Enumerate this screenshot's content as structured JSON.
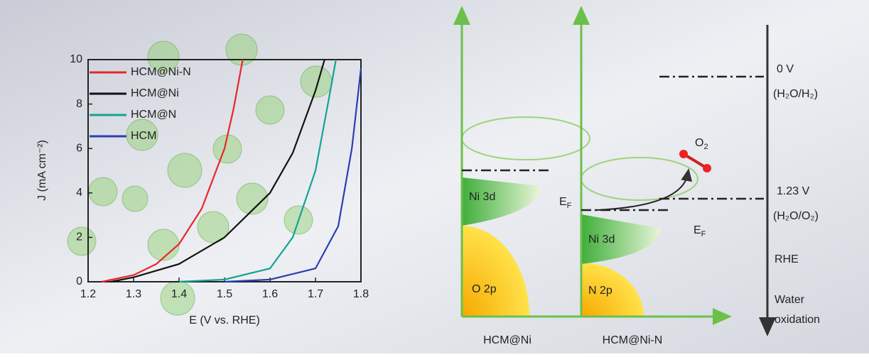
{
  "chart_data": {
    "type": "line",
    "xlabel": "E (V vs. RHE)",
    "ylabel": "J (mA cm⁻²)",
    "xlim": [
      1.2,
      1.8
    ],
    "xticks": [
      1.2,
      1.3,
      1.4,
      1.5,
      1.6,
      1.7,
      1.8
    ],
    "ylim": [
      0,
      10
    ],
    "yticks": [
      0,
      2,
      4,
      6,
      8,
      10
    ],
    "legend": "upper left",
    "series": [
      {
        "name": "HCM@Ni-N",
        "color": "#e8262a",
        "x": [
          1.23,
          1.3,
          1.35,
          1.4,
          1.45,
          1.5,
          1.52,
          1.54
        ],
        "values": [
          0,
          0.3,
          0.8,
          1.7,
          3.3,
          6,
          7.8,
          10
        ]
      },
      {
        "name": "HCM@Ni",
        "color": "#111111",
        "x": [
          1.25,
          1.3,
          1.4,
          1.5,
          1.6,
          1.65,
          1.7,
          1.72
        ],
        "values": [
          0,
          0.2,
          0.8,
          2,
          4,
          5.8,
          8.6,
          10
        ]
      },
      {
        "name": "HCM@N",
        "color": "#14a394",
        "x": [
          1.4,
          1.5,
          1.6,
          1.65,
          1.7,
          1.73,
          1.745
        ],
        "values": [
          0,
          0.1,
          0.6,
          2,
          5,
          8.3,
          10
        ]
      },
      {
        "name": "HCM",
        "color": "#2a3fb0",
        "x": [
          1.5,
          1.6,
          1.7,
          1.75,
          1.78,
          1.8
        ],
        "values": [
          0,
          0.1,
          0.6,
          2.5,
          6,
          9.6
        ]
      }
    ]
  },
  "diagram": {
    "ni3d_left": "Ni 3d",
    "o2p": "O 2p",
    "ni3d_right": "Ni 3d",
    "n2p": "N 2p",
    "ef_left": {
      "main": "E",
      "sub": "F"
    },
    "ef_right": {
      "main": "E",
      "sub": "F"
    },
    "o2": {
      "main": "O",
      "sub": "2"
    },
    "potential_0": "0 V",
    "couple_0": "(H₂O/H₂)",
    "potential_123": "1.23 V",
    "couple_123": "(H₂O/O₂)",
    "scale": "RHE",
    "process_1": "Water",
    "process_2": "oxidation",
    "label_left": "HCM@Ni",
    "label_right": "HCM@Ni-N"
  }
}
